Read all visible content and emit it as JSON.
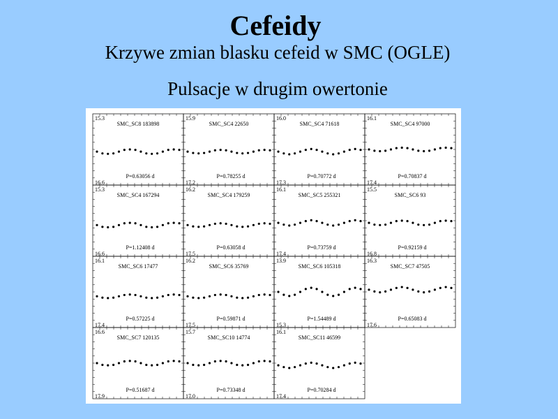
{
  "header": {
    "title": "Cefeidy",
    "subtitle": "Krzywe zmian blasku cefeid w SMC (OGLE)",
    "section": "Pulsacje w drugim owertonie"
  },
  "chart_data": [
    {
      "type": "scatter",
      "title": "SMC_SC8 183898",
      "annotation": "P=0.63056 d",
      "ylim": [
        15.3,
        16.6
      ],
      "yticks": [
        15.3,
        16.6
      ],
      "values": [
        16.0,
        16.04,
        16.05,
        16.04,
        16.0,
        15.96,
        15.95,
        15.96,
        16.0,
        16.04,
        16.05,
        16.04,
        16.0,
        15.96,
        15.95,
        15.96
      ]
    },
    {
      "type": "scatter",
      "title": "SMC_SC4 22650",
      "annotation": "P=0.78255 d",
      "ylim": [
        15.9,
        17.2
      ],
      "yticks": [
        15.9,
        17.2
      ],
      "values": [
        16.6,
        16.63,
        16.64,
        16.63,
        16.6,
        16.57,
        16.56,
        16.57,
        16.6,
        16.63,
        16.64,
        16.63,
        16.6,
        16.57,
        16.56,
        16.57
      ]
    },
    {
      "type": "scatter",
      "title": "SMC_SC4 71618",
      "annotation": "P=0.70772 d",
      "ylim": [
        16.0,
        17.3
      ],
      "yticks": [
        {
          "value": 16.0,
          "label": "16.0"
        },
        17.3
      ],
      "values": [
        16.7,
        16.74,
        16.76,
        16.74,
        16.7,
        16.66,
        16.64,
        16.66,
        16.7,
        16.74,
        16.76,
        16.74,
        16.7,
        16.66,
        16.64,
        16.66
      ]
    },
    {
      "type": "scatter",
      "title": "SMC_SC4 97000",
      "annotation": "P=0.70837 d",
      "ylim": [
        16.1,
        17.4
      ],
      "yticks": [
        16.1,
        17.4
      ],
      "values": [
        16.75,
        16.78,
        16.79,
        16.78,
        16.75,
        16.72,
        16.71,
        16.72,
        16.75,
        16.78,
        16.79,
        16.78,
        16.75,
        16.72,
        16.71,
        16.72
      ]
    },
    {
      "type": "scatter",
      "title": "SMC_SC4 167294",
      "annotation": "P=1.12408 d",
      "ylim": [
        15.3,
        16.6
      ],
      "yticks": [
        15.3,
        16.6
      ],
      "values": [
        16.05,
        16.09,
        16.1,
        16.09,
        16.05,
        16.01,
        16.0,
        16.01,
        16.05,
        16.09,
        16.1,
        16.09,
        16.05,
        16.01,
        16.0,
        16.01
      ]
    },
    {
      "type": "scatter",
      "title": "SMC_SC4 179259",
      "annotation": "P=0.63058 d",
      "ylim": [
        16.2,
        17.5
      ],
      "yticks": [
        16.2,
        17.5
      ],
      "values": [
        16.95,
        16.98,
        16.99,
        16.98,
        16.95,
        16.92,
        16.91,
        16.92,
        16.95,
        16.98,
        16.99,
        16.98,
        16.95,
        16.92,
        16.91,
        16.92
      ]
    },
    {
      "type": "scatter",
      "title": "SMC_SC5 255321",
      "annotation": "P=0.73759 d",
      "ylim": [
        16.1,
        17.4
      ],
      "yticks": [
        16.1,
        17.4
      ],
      "values": [
        16.8,
        16.84,
        16.86,
        16.84,
        16.8,
        16.76,
        16.74,
        16.76,
        16.8,
        16.84,
        16.86,
        16.84,
        16.8,
        16.76,
        16.74,
        16.76
      ]
    },
    {
      "type": "scatter",
      "title": "SMC_SC6 93",
      "annotation": "P=0.92159 d",
      "ylim": [
        15.5,
        16.8
      ],
      "yticks": [
        15.5,
        16.8
      ],
      "values": [
        16.2,
        16.24,
        16.25,
        16.24,
        16.2,
        16.16,
        16.15,
        16.16,
        16.2,
        16.24,
        16.25,
        16.24,
        16.2,
        16.16,
        16.15,
        16.16
      ]
    },
    {
      "type": "scatter",
      "title": "SMC_SC6 17477",
      "annotation": "P=0.57225 d",
      "ylim": [
        16.1,
        17.4
      ],
      "yticks": [
        16.1,
        17.4
      ],
      "values": [
        16.85,
        16.88,
        16.89,
        16.88,
        16.85,
        16.82,
        16.81,
        16.82,
        16.85,
        16.88,
        16.89,
        16.88,
        16.85,
        16.82,
        16.81,
        16.82
      ]
    },
    {
      "type": "scatter",
      "title": "SMC_SC6 35769",
      "annotation": "P=0.59871 d",
      "ylim": [
        16.2,
        17.5
      ],
      "yticks": [
        16.2,
        17.5
      ],
      "values": [
        16.95,
        16.98,
        16.99,
        16.98,
        16.95,
        16.92,
        16.91,
        16.92,
        16.95,
        16.98,
        16.99,
        16.98,
        16.95,
        16.92,
        16.91,
        16.92
      ]
    },
    {
      "type": "scatter",
      "title": "SMC_SC6 105318",
      "annotation": "P=1.54489 d",
      "ylim": [
        13.9,
        15.3
      ],
      "yticks": [
        13.9,
        15.3
      ],
      "values": [
        14.6,
        14.67,
        14.7,
        14.67,
        14.6,
        14.53,
        14.5,
        14.53,
        14.6,
        14.67,
        14.7,
        14.67,
        14.6,
        14.53,
        14.5,
        14.53
      ]
    },
    {
      "type": "scatter",
      "title": "SMC_SC7 47505",
      "annotation": "P=0.65083 d",
      "ylim": [
        16.3,
        17.6
      ],
      "yticks": [
        16.3,
        17.6
      ],
      "values": [
        16.9,
        16.94,
        16.96,
        16.94,
        16.9,
        16.86,
        16.84,
        16.86,
        16.9,
        16.94,
        16.96,
        16.94,
        16.9,
        16.86,
        16.84,
        16.86
      ]
    },
    {
      "type": "scatter",
      "title": "SMC_SC7 120135",
      "annotation": "P=0.51687 d",
      "ylim": [
        16.6,
        17.9
      ],
      "yticks": [
        16.6,
        17.9
      ],
      "values": [
        17.25,
        17.29,
        17.3,
        17.29,
        17.25,
        17.21,
        17.2,
        17.21,
        17.25,
        17.29,
        17.3,
        17.29,
        17.25,
        17.21,
        17.2,
        17.21
      ]
    },
    {
      "type": "scatter",
      "title": "SMC_SC10 14774",
      "annotation": "P=0.73348 d",
      "ylim": [
        15.7,
        17.0
      ],
      "yticks": [
        15.7,
        {
          "value": 17.0,
          "label": "17.0"
        }
      ],
      "values": [
        16.35,
        16.39,
        16.4,
        16.39,
        16.35,
        16.31,
        16.3,
        16.31,
        16.35,
        16.39,
        16.4,
        16.39,
        16.35,
        16.31,
        16.3,
        16.31
      ]
    },
    {
      "type": "scatter",
      "title": "SMC_SC11 46599",
      "annotation": "P=0.70284 d",
      "ylim": [
        16.1,
        17.4
      ],
      "yticks": [
        16.1,
        17.4
      ],
      "values": [
        16.8,
        16.84,
        16.86,
        16.84,
        16.8,
        16.76,
        16.74,
        16.76,
        16.8,
        16.84,
        16.86,
        16.84,
        16.8,
        16.76,
        16.74,
        16.76
      ]
    }
  ]
}
